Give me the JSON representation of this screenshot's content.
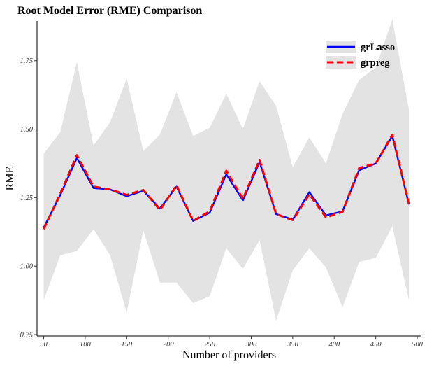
{
  "chart_data": {
    "type": "line",
    "title": "Root Model Error (RME) Comparison",
    "xlabel": "Number of providers",
    "ylabel": "RME",
    "xlim": [
      42,
      505
    ],
    "ylim": [
      0.745,
      1.895
    ],
    "xticks": [
      50,
      100,
      150,
      200,
      250,
      300,
      350,
      400,
      450,
      500
    ],
    "yticks": [
      0.75,
      1.0,
      1.25,
      1.5,
      1.75
    ],
    "ytick_labels": [
      "0.75",
      "1.00",
      "1.25",
      "1.50",
      "1.75"
    ],
    "grid": false,
    "legend_position": "top-right",
    "x": [
      50,
      70,
      90,
      110,
      130,
      150,
      170,
      190,
      210,
      230,
      250,
      270,
      290,
      310,
      330,
      350,
      370,
      390,
      410,
      430,
      450,
      470,
      490
    ],
    "band": {
      "color": "#e3e3e3",
      "upper": [
        1.41,
        1.49,
        1.745,
        1.44,
        1.525,
        1.685,
        1.42,
        1.48,
        1.635,
        1.475,
        1.505,
        1.63,
        1.5,
        1.675,
        1.585,
        1.36,
        1.47,
        1.375,
        1.555,
        1.68,
        1.725,
        1.9,
        1.57
      ],
      "lower": [
        0.875,
        1.04,
        1.055,
        1.135,
        1.04,
        0.83,
        1.13,
        0.94,
        0.94,
        0.865,
        0.89,
        1.065,
        0.99,
        1.095,
        0.8,
        0.985,
        1.065,
        0.995,
        0.85,
        1.015,
        1.03,
        1.145,
        0.875
      ]
    },
    "series": [
      {
        "name": "grLasso",
        "color": "#0000ff",
        "style": "solid",
        "values": [
          1.14,
          1.26,
          1.395,
          1.285,
          1.28,
          1.255,
          1.275,
          1.21,
          1.29,
          1.165,
          1.195,
          1.335,
          1.24,
          1.38,
          1.19,
          1.17,
          1.27,
          1.185,
          1.2,
          1.35,
          1.375,
          1.475,
          1.225
        ]
      },
      {
        "name": "grpreg",
        "color": "#ff0000",
        "style": "dashed",
        "values": [
          1.135,
          1.265,
          1.405,
          1.29,
          1.28,
          1.26,
          1.278,
          1.205,
          1.295,
          1.165,
          1.2,
          1.348,
          1.245,
          1.388,
          1.19,
          1.168,
          1.262,
          1.178,
          1.198,
          1.358,
          1.375,
          1.48,
          1.225
        ]
      }
    ]
  }
}
